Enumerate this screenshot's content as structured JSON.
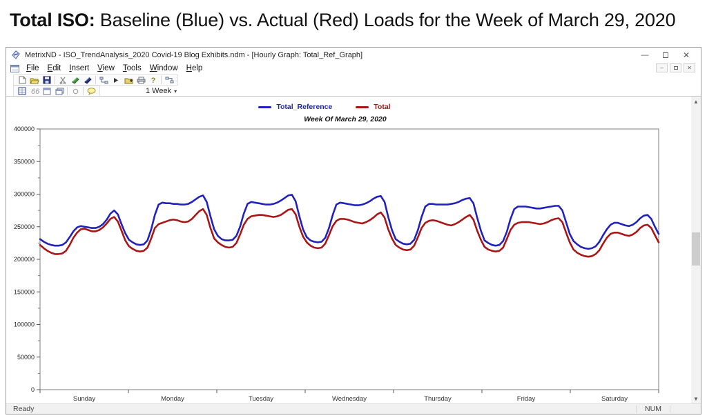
{
  "page_title": {
    "bold": "Total ISO:",
    "rest": " Baseline (Blue) vs. Actual (Red) Loads for the Week of March 29, 2020"
  },
  "window": {
    "title": "MetrixND - ISO_TrendAnalysis_2020 Covid-19 Blog Exhibits.ndm - [Hourly Graph: Total_Ref_Graph]",
    "menus": [
      "File",
      "Edit",
      "Insert",
      "View",
      "Tools",
      "Window",
      "Help"
    ],
    "toolbar": {
      "week_select_label": "1 Week"
    },
    "status": {
      "left": "Ready",
      "keyboard": "NUM"
    }
  },
  "chart_data": {
    "type": "line",
    "title": "Week Of March 29, 2020",
    "x_unit": "hour",
    "x_range": [
      0,
      167
    ],
    "ylim": [
      0,
      400000
    ],
    "y_ticks": [
      0,
      50000,
      100000,
      150000,
      200000,
      250000,
      300000,
      350000,
      400000
    ],
    "x_categories": [
      "Sunday",
      "Monday",
      "Tuesday",
      "Wednesday",
      "Thursday",
      "Friday",
      "Saturday"
    ],
    "grid": false,
    "legend_position": "top-center",
    "legend": [
      {
        "name": "Total_Reference",
        "color": "#2121bd"
      },
      {
        "name": "Total",
        "color": "#aa1515"
      }
    ],
    "series": [
      {
        "name": "Total_Reference",
        "color": "#2121bd",
        "values": [
          231000,
          227000,
          224000,
          222000,
          221000,
          221000,
          222000,
          226000,
          234000,
          243000,
          249000,
          251000,
          250000,
          249000,
          248000,
          248000,
          250000,
          254000,
          261000,
          270000,
          275000,
          269000,
          254000,
          240000,
          230000,
          226000,
          223000,
          222000,
          223000,
          229000,
          246000,
          268000,
          284000,
          287000,
          286000,
          286000,
          285000,
          285000,
          284000,
          284000,
          285000,
          288000,
          292000,
          296000,
          298000,
          288000,
          266000,
          246000,
          236000,
          231000,
          229000,
          229000,
          230000,
          236000,
          250000,
          270000,
          285000,
          288000,
          287000,
          286000,
          285000,
          284000,
          284000,
          285000,
          287000,
          290000,
          294000,
          298000,
          299000,
          289000,
          266000,
          246000,
          234000,
          229000,
          227000,
          226000,
          227000,
          233000,
          248000,
          268000,
          284000,
          287000,
          286000,
          285000,
          284000,
          283000,
          283000,
          284000,
          286000,
          289000,
          293000,
          296000,
          297000,
          288000,
          265000,
          245000,
          231000,
          227000,
          224000,
          223000,
          224000,
          230000,
          245000,
          265000,
          281000,
          285000,
          285000,
          284000,
          284000,
          284000,
          284000,
          285000,
          286000,
          288000,
          291000,
          293000,
          294000,
          286000,
          264000,
          244000,
          229000,
          225000,
          222000,
          221000,
          222000,
          228000,
          242000,
          262000,
          277000,
          281000,
          281000,
          281000,
          280000,
          279000,
          278000,
          278000,
          279000,
          280000,
          281000,
          282000,
          282000,
          275000,
          257000,
          239000,
          228000,
          223000,
          219000,
          217000,
          216000,
          217000,
          220000,
          227000,
          237000,
          246000,
          253000,
          256000,
          256000,
          254000,
          252000,
          251000,
          253000,
          257000,
          263000,
          267000,
          268000,
          262000,
          250000,
          239000
        ]
      },
      {
        "name": "Total",
        "color": "#aa1515",
        "values": [
          222000,
          217000,
          213000,
          210000,
          208000,
          208000,
          209000,
          213000,
          222000,
          233000,
          241000,
          246000,
          247000,
          245000,
          243000,
          243000,
          245000,
          249000,
          255000,
          262000,
          265000,
          258000,
          244000,
          229000,
          220000,
          216000,
          213000,
          212000,
          213000,
          218000,
          232000,
          248000,
          254000,
          256000,
          258000,
          260000,
          261000,
          260000,
          258000,
          257000,
          258000,
          262000,
          268000,
          274000,
          277000,
          268000,
          248000,
          232000,
          226000,
          222000,
          219000,
          218000,
          219000,
          225000,
          238000,
          253000,
          262000,
          266000,
          267000,
          268000,
          268000,
          267000,
          266000,
          265000,
          266000,
          268000,
          272000,
          276000,
          277000,
          269000,
          250000,
          235000,
          226000,
          221000,
          218000,
          217000,
          218000,
          224000,
          237000,
          251000,
          259000,
          262000,
          262000,
          261000,
          259000,
          257000,
          256000,
          255000,
          257000,
          260000,
          264000,
          269000,
          272000,
          264000,
          246000,
          232000,
          222000,
          218000,
          215000,
          214000,
          215000,
          221000,
          234000,
          248000,
          256000,
          259000,
          260000,
          259000,
          257000,
          255000,
          253000,
          252000,
          254000,
          257000,
          261000,
          265000,
          268000,
          261000,
          244000,
          230000,
          219000,
          215000,
          213000,
          212000,
          213000,
          218000,
          231000,
          245000,
          253000,
          256000,
          257000,
          257000,
          257000,
          256000,
          255000,
          254000,
          255000,
          257000,
          260000,
          262000,
          263000,
          257000,
          241000,
          226000,
          215000,
          210000,
          207000,
          205000,
          204000,
          205000,
          208000,
          214000,
          224000,
          233000,
          239000,
          241000,
          241000,
          239000,
          237000,
          236000,
          238000,
          242000,
          248000,
          252000,
          253000,
          248000,
          237000,
          226000
        ]
      }
    ]
  }
}
